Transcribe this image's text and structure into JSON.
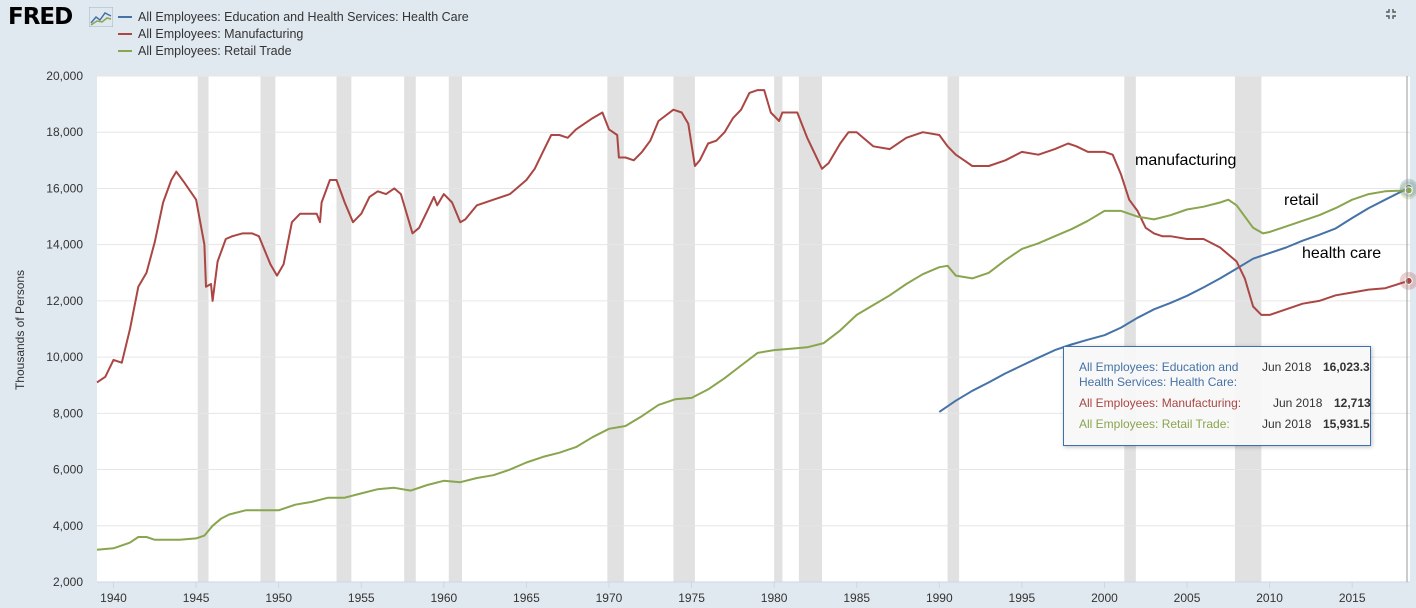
{
  "header": {
    "logo_text": "FRED",
    "logo_icon": "fred-chart-logo-icon",
    "expand_icon": "expand-icon"
  },
  "legend": [
    {
      "label": "All Employees: Education and Health Services: Health Care",
      "color": "#4572a7"
    },
    {
      "label": "All Employees: Manufacturing",
      "color": "#aa4643"
    },
    {
      "label": "All Employees: Retail Trade",
      "color": "#89a54e"
    }
  ],
  "chart_data": {
    "type": "line",
    "ylabel": "Thousands of Persons",
    "xlim": [
      1939,
      2018.5
    ],
    "ylim": [
      2000,
      20000
    ],
    "yticks": [
      "2,000",
      "4,000",
      "6,000",
      "8,000",
      "10,000",
      "12,000",
      "14,000",
      "16,000",
      "18,000",
      "20,000"
    ],
    "ytick_values": [
      2000,
      4000,
      6000,
      8000,
      10000,
      12000,
      14000,
      16000,
      18000,
      20000
    ],
    "xticks": [
      "1940",
      "1945",
      "1950",
      "1955",
      "1960",
      "1965",
      "1970",
      "1975",
      "1980",
      "1985",
      "1990",
      "1995",
      "2000",
      "2005",
      "2010",
      "2015"
    ],
    "xtick_values": [
      1940,
      1945,
      1950,
      1955,
      1960,
      1965,
      1970,
      1975,
      1980,
      1985,
      1990,
      1995,
      2000,
      2005,
      2010,
      2015
    ],
    "recessions": [
      [
        1945.1,
        1945.75
      ],
      [
        1948.9,
        1949.8
      ],
      [
        1953.5,
        1954.4
      ],
      [
        1957.6,
        1958.3
      ],
      [
        1960.3,
        1961.1
      ],
      [
        1969.9,
        1970.9
      ],
      [
        1973.9,
        1975.2
      ],
      [
        1980.0,
        1980.5
      ],
      [
        1981.5,
        1982.9
      ],
      [
        1990.5,
        1991.2
      ],
      [
        2001.2,
        2001.9
      ],
      [
        2007.9,
        2009.5
      ]
    ],
    "grid": true,
    "series": [
      {
        "name": "All Employees: Education and Health Services: Health Care",
        "color": "#4572a7",
        "x": [
          1990.0,
          1991.0,
          1992.0,
          1993.0,
          1994.0,
          1995.0,
          1996.0,
          1997.0,
          1998.0,
          1999.0,
          2000.0,
          2001.0,
          2002.0,
          2003.0,
          2004.0,
          2005.0,
          2006.0,
          2007.0,
          2008.0,
          2009.0,
          2010.0,
          2011.0,
          2012.0,
          2013.0,
          2014.0,
          2015.0,
          2016.0,
          2017.0,
          2018.42
        ],
        "y": [
          8050,
          8450,
          8800,
          9100,
          9420,
          9700,
          9980,
          10250,
          10450,
          10620,
          10780,
          11050,
          11400,
          11700,
          11930,
          12180,
          12480,
          12800,
          13150,
          13500,
          13700,
          13900,
          14140,
          14350,
          14580,
          14950,
          15300,
          15600,
          16023.3
        ]
      },
      {
        "name": "All Employees: Manufacturing",
        "color": "#aa4643",
        "x": [
          1939.0,
          1939.5,
          1940.0,
          1940.5,
          1941.0,
          1941.5,
          1942.0,
          1942.5,
          1943.0,
          1943.5,
          1943.8,
          1944.3,
          1945.0,
          1945.5,
          1945.6,
          1945.9,
          1946.0,
          1946.3,
          1946.8,
          1947.2,
          1947.8,
          1948.4,
          1948.8,
          1949.5,
          1949.9,
          1950.3,
          1950.8,
          1951.3,
          1951.8,
          1952.3,
          1952.5,
          1952.6,
          1953.1,
          1953.5,
          1954.0,
          1954.5,
          1955.0,
          1955.5,
          1956.0,
          1956.5,
          1957.0,
          1957.4,
          1958.1,
          1958.5,
          1959.0,
          1959.4,
          1959.6,
          1960.0,
          1960.5,
          1961.0,
          1961.3,
          1962.0,
          1963.0,
          1964.0,
          1965.0,
          1965.5,
          1966.0,
          1966.5,
          1967.0,
          1967.5,
          1968.0,
          1969.0,
          1969.6,
          1970.0,
          1970.5,
          1970.6,
          1971.0,
          1971.5,
          1972.0,
          1972.5,
          1973.0,
          1973.9,
          1974.4,
          1974.8,
          1975.2,
          1975.5,
          1976.0,
          1976.5,
          1977.0,
          1977.5,
          1978.0,
          1978.5,
          1979.0,
          1979.4,
          1979.8,
          1980.3,
          1980.5,
          1981.0,
          1981.4,
          1982.0,
          1982.9,
          1983.3,
          1984.0,
          1984.5,
          1985.0,
          1986.0,
          1987.0,
          1988.0,
          1989.0,
          1990.0,
          1990.5,
          1991.0,
          1991.5,
          1992.0,
          1993.0,
          1994.0,
          1995.0,
          1996.0,
          1997.0,
          1997.8,
          1998.3,
          1999.0,
          2000.0,
          2000.5,
          2001.0,
          2001.5,
          2002.0,
          2002.5,
          2003.0,
          2003.5,
          2004.0,
          2005.0,
          2006.0,
          2007.0,
          2008.0,
          2008.5,
          2009.0,
          2009.5,
          2010.0,
          2011.0,
          2012.0,
          2013.0,
          2014.0,
          2015.0,
          2016.0,
          2017.0,
          2018.42
        ],
        "y": [
          9100,
          9300,
          9900,
          9800,
          11000,
          12500,
          13000,
          14100,
          15500,
          16300,
          16600,
          16200,
          15600,
          14000,
          12500,
          12600,
          12000,
          13400,
          14200,
          14300,
          14400,
          14400,
          14300,
          13300,
          12900,
          13300,
          14800,
          15100,
          15100,
          15100,
          14800,
          15500,
          16300,
          16300,
          15500,
          14800,
          15100,
          15700,
          15900,
          15800,
          16000,
          15800,
          14400,
          14600,
          15200,
          15700,
          15400,
          15800,
          15500,
          14800,
          14900,
          15400,
          15600,
          15800,
          16300,
          16700,
          17300,
          17900,
          17900,
          17800,
          18100,
          18500,
          18700,
          18100,
          17900,
          17100,
          17100,
          17000,
          17300,
          17700,
          18400,
          18800,
          18700,
          18300,
          16800,
          17000,
          17600,
          17700,
          18000,
          18500,
          18800,
          19400,
          19500,
          19500,
          18700,
          18400,
          18700,
          18700,
          18700,
          17800,
          16700,
          16900,
          17600,
          18000,
          18000,
          17500,
          17400,
          17800,
          18000,
          17900,
          17500,
          17200,
          17000,
          16800,
          16800,
          17000,
          17300,
          17200,
          17400,
          17600,
          17500,
          17300,
          17300,
          17200,
          16500,
          15600,
          15200,
          14600,
          14400,
          14300,
          14300,
          14200,
          14200,
          13900,
          13400,
          12800,
          11800,
          11500,
          11500,
          11700,
          11900,
          12000,
          12200,
          12300,
          12400,
          12450,
          12713
        ]
      },
      {
        "name": "All Employees: Retail Trade",
        "color": "#89a54e",
        "x": [
          1939.0,
          1940.0,
          1941.0,
          1941.5,
          1942.0,
          1942.5,
          1943.0,
          1944.0,
          1945.0,
          1945.5,
          1946.0,
          1946.5,
          1947.0,
          1948.0,
          1949.0,
          1950.0,
          1951.0,
          1952.0,
          1953.0,
          1954.0,
          1955.0,
          1956.0,
          1957.0,
          1958.0,
          1959.0,
          1960.0,
          1961.0,
          1962.0,
          1963.0,
          1964.0,
          1965.0,
          1966.0,
          1967.0,
          1968.0,
          1969.0,
          1970.0,
          1971.0,
          1972.0,
          1973.0,
          1974.0,
          1975.0,
          1976.0,
          1977.0,
          1978.0,
          1979.0,
          1980.0,
          1981.0,
          1982.0,
          1983.0,
          1984.0,
          1985.0,
          1986.0,
          1987.0,
          1988.0,
          1989.0,
          1990.0,
          1990.5,
          1991.0,
          1992.0,
          1993.0,
          1994.0,
          1995.0,
          1996.0,
          1997.0,
          1998.0,
          1999.0,
          2000.0,
          2001.0,
          2002.0,
          2003.0,
          2004.0,
          2005.0,
          2006.0,
          2007.0,
          2007.5,
          2008.0,
          2009.0,
          2009.6,
          2010.0,
          2011.0,
          2012.0,
          2013.0,
          2014.0,
          2015.0,
          2016.0,
          2017.0,
          2018.42
        ],
        "y": [
          3150,
          3200,
          3400,
          3600,
          3600,
          3500,
          3500,
          3500,
          3550,
          3650,
          4000,
          4250,
          4400,
          4550,
          4550,
          4550,
          4750,
          4850,
          5000,
          5000,
          5150,
          5300,
          5350,
          5250,
          5450,
          5600,
          5550,
          5700,
          5800,
          6000,
          6250,
          6450,
          6600,
          6800,
          7150,
          7450,
          7550,
          7900,
          8300,
          8500,
          8550,
          8850,
          9250,
          9700,
          10150,
          10250,
          10300,
          10350,
          10500,
          10950,
          11500,
          11850,
          12200,
          12600,
          12950,
          13200,
          13250,
          12900,
          12800,
          13000,
          13450,
          13850,
          14050,
          14300,
          14550,
          14850,
          15200,
          15200,
          15000,
          14900,
          15050,
          15250,
          15350,
          15500,
          15600,
          15400,
          14600,
          14400,
          14450,
          14650,
          14850,
          15050,
          15300,
          15600,
          15800,
          15900,
          15931.5
        ]
      }
    ],
    "annotations": [
      {
        "text": "manufacturing"
      },
      {
        "text": "retail"
      },
      {
        "text": "health care"
      }
    ]
  },
  "tooltip": {
    "rows": [
      {
        "name_line1": "All Employees: Education and",
        "name_line2": "Health Services: Health Care:",
        "date": "Jun 2018",
        "value": "16,023.3",
        "color": "#4572a7"
      },
      {
        "name_line1": "All Employees: Manufacturing:",
        "date": "Jun 2018",
        "value": "12,713",
        "color": "#aa4643"
      },
      {
        "name_line1": "All Employees: Retail Trade:",
        "date": "Jun 2018",
        "value": "15,931.5",
        "color": "#89a54e"
      }
    ]
  }
}
